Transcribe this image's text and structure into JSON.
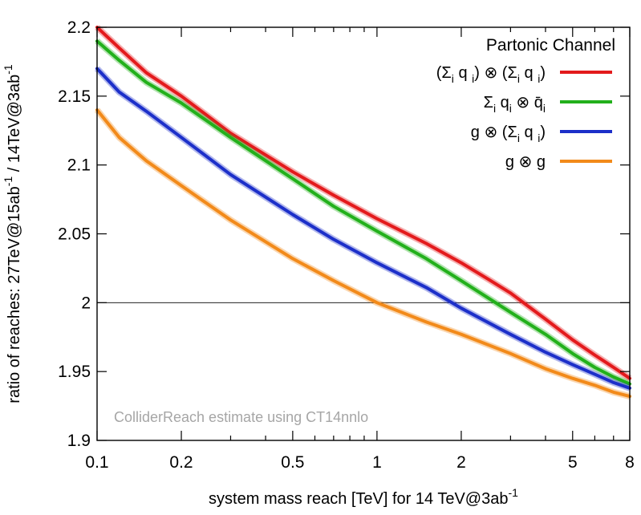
{
  "chart_data": {
    "type": "line",
    "xlabel": "system mass reach [TeV] for 14 TeV@3ab",
    "xlabel_sup": "-1",
    "ylabel_parts": [
      "ratio of reaches: 27TeV@15ab",
      "-1",
      " / 14TeV@3ab",
      "-1"
    ],
    "xscale": "log",
    "xlim": [
      0.1,
      8
    ],
    "ylim": [
      1.9,
      2.2
    ],
    "xticks": [
      0.1,
      0.2,
      0.5,
      1,
      2,
      5,
      8
    ],
    "xtick_labels": [
      "0.1",
      "0.2",
      "0.5",
      "1",
      "2",
      "5",
      "8"
    ],
    "yticks": [
      1.9,
      1.95,
      2.0,
      2.05,
      2.1,
      2.15,
      2.2
    ],
    "ytick_labels": [
      "1.9",
      "1.95",
      "2",
      "2.05",
      "2.1",
      "2.15",
      "2.2"
    ],
    "reference_line": 2.0,
    "grid": false,
    "legend_title": "Partonic Channel",
    "legend_position": "top-right",
    "annotation": "ColliderReach estimate using CT14nnlo",
    "series": [
      {
        "name": "(Σi q i) ⊗ (Σi q i)",
        "color": "#e31a1c",
        "x": [
          0.1,
          0.12,
          0.15,
          0.2,
          0.3,
          0.5,
          0.7,
          1,
          1.5,
          2,
          2.5,
          3,
          4,
          5,
          6,
          7,
          8
        ],
        "y": [
          2.2,
          2.185,
          2.167,
          2.15,
          2.123,
          2.095,
          2.078,
          2.061,
          2.043,
          2.029,
          2.017,
          2.007,
          1.988,
          1.973,
          1.962,
          1.953,
          1.945
        ]
      },
      {
        "name": "Σi qi ⊗ q̄i",
        "color": "#22b01b",
        "x": [
          0.1,
          0.12,
          0.15,
          0.2,
          0.3,
          0.5,
          0.7,
          1,
          1.5,
          2,
          3,
          4,
          5,
          6,
          7,
          8
        ],
        "y": [
          2.19,
          2.176,
          2.16,
          2.145,
          2.12,
          2.09,
          2.07,
          2.052,
          2.032,
          2.016,
          1.993,
          1.977,
          1.963,
          1.953,
          1.946,
          1.941
        ]
      },
      {
        "name": "g ⊗ (Σi q i)",
        "color": "#1c2fc9",
        "x": [
          0.1,
          0.12,
          0.15,
          0.2,
          0.3,
          0.5,
          0.7,
          1,
          1.5,
          2,
          3,
          4,
          5,
          6,
          7,
          8
        ],
        "y": [
          2.17,
          2.153,
          2.139,
          2.12,
          2.093,
          2.064,
          2.046,
          2.029,
          2.011,
          1.996,
          1.977,
          1.964,
          1.955,
          1.948,
          1.942,
          1.938
        ]
      },
      {
        "name": "g ⊗ g",
        "color": "#f28a1a",
        "x": [
          0.1,
          0.12,
          0.15,
          0.2,
          0.3,
          0.5,
          0.7,
          1,
          1.5,
          2,
          3,
          4,
          5,
          6,
          7,
          8
        ],
        "y": [
          2.14,
          2.12,
          2.103,
          2.085,
          2.06,
          2.032,
          2.016,
          2.0,
          1.986,
          1.977,
          1.963,
          1.952,
          1.945,
          1.94,
          1.935,
          1.932
        ]
      }
    ]
  }
}
